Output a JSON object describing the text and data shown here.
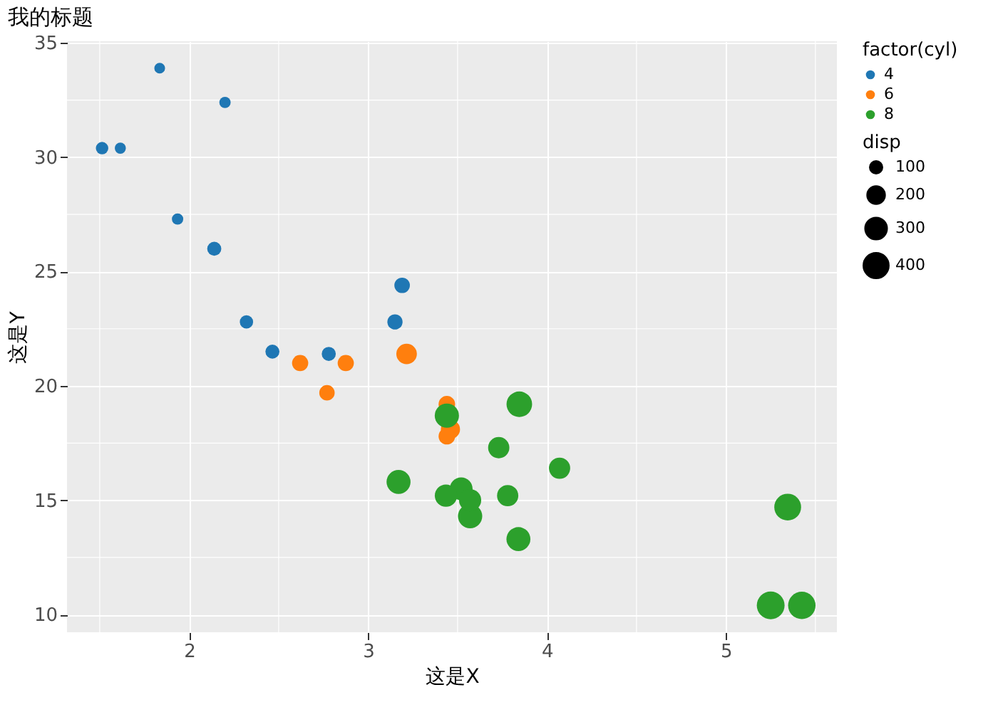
{
  "chart_data": {
    "type": "scatter",
    "title": "我的标题",
    "xlabel": "这是X",
    "ylabel": "这是Y",
    "legend_title": "factor(cyl)",
    "annotations": [
      "disp"
    ],
    "size_legend": [
      100,
      200,
      300,
      400
    ],
    "xlim": [
      1.317,
      5.62
    ],
    "ylim": [
      9.225,
      35.075
    ],
    "xticks": [
      2,
      3,
      4,
      5
    ],
    "yticks": [
      10,
      15,
      20,
      25,
      30,
      35
    ],
    "grid": true,
    "legend": "right",
    "marker": "circle",
    "series": [
      {
        "name": "4",
        "color": "#1f77b4",
        "x": [
          2.32,
          3.19,
          3.15,
          2.2,
          1.615,
          1.835,
          2.465,
          1.935,
          2.14,
          1.513,
          2.78
        ],
        "values": [
          22.8,
          24.4,
          22.8,
          32.4,
          30.4,
          33.9,
          21.5,
          27.3,
          26.0,
          30.4,
          21.4
        ],
        "sizes": [
          108,
          146.7,
          140.8,
          78.7,
          75.7,
          71.1,
          120.1,
          79,
          120.3,
          95.1,
          121
        ]
      },
      {
        "name": "6",
        "color": "#ff7f0e",
        "x": [
          2.62,
          2.875,
          3.215,
          3.46,
          3.44,
          3.44,
          2.77
        ],
        "values": [
          21.0,
          21.0,
          21.4,
          18.1,
          19.2,
          17.8,
          19.7
        ],
        "sizes": [
          160,
          160,
          258,
          225,
          167.6,
          167.6,
          145
        ]
      },
      {
        "name": "8",
        "color": "#2ca02c",
        "x": [
          3.44,
          3.57,
          4.07,
          3.73,
          3.78,
          5.25,
          5.424,
          5.345,
          3.52,
          3.435,
          3.84,
          3.845,
          3.17,
          3.57
        ],
        "values": [
          18.7,
          14.3,
          16.4,
          17.3,
          15.2,
          10.4,
          10.4,
          14.7,
          15.5,
          15.2,
          13.3,
          19.2,
          15.8,
          15.0
        ],
        "sizes": [
          360,
          360,
          275.8,
          275.8,
          275.8,
          472,
          460,
          440,
          318,
          304,
          350,
          400,
          351,
          301
        ]
      }
    ]
  }
}
